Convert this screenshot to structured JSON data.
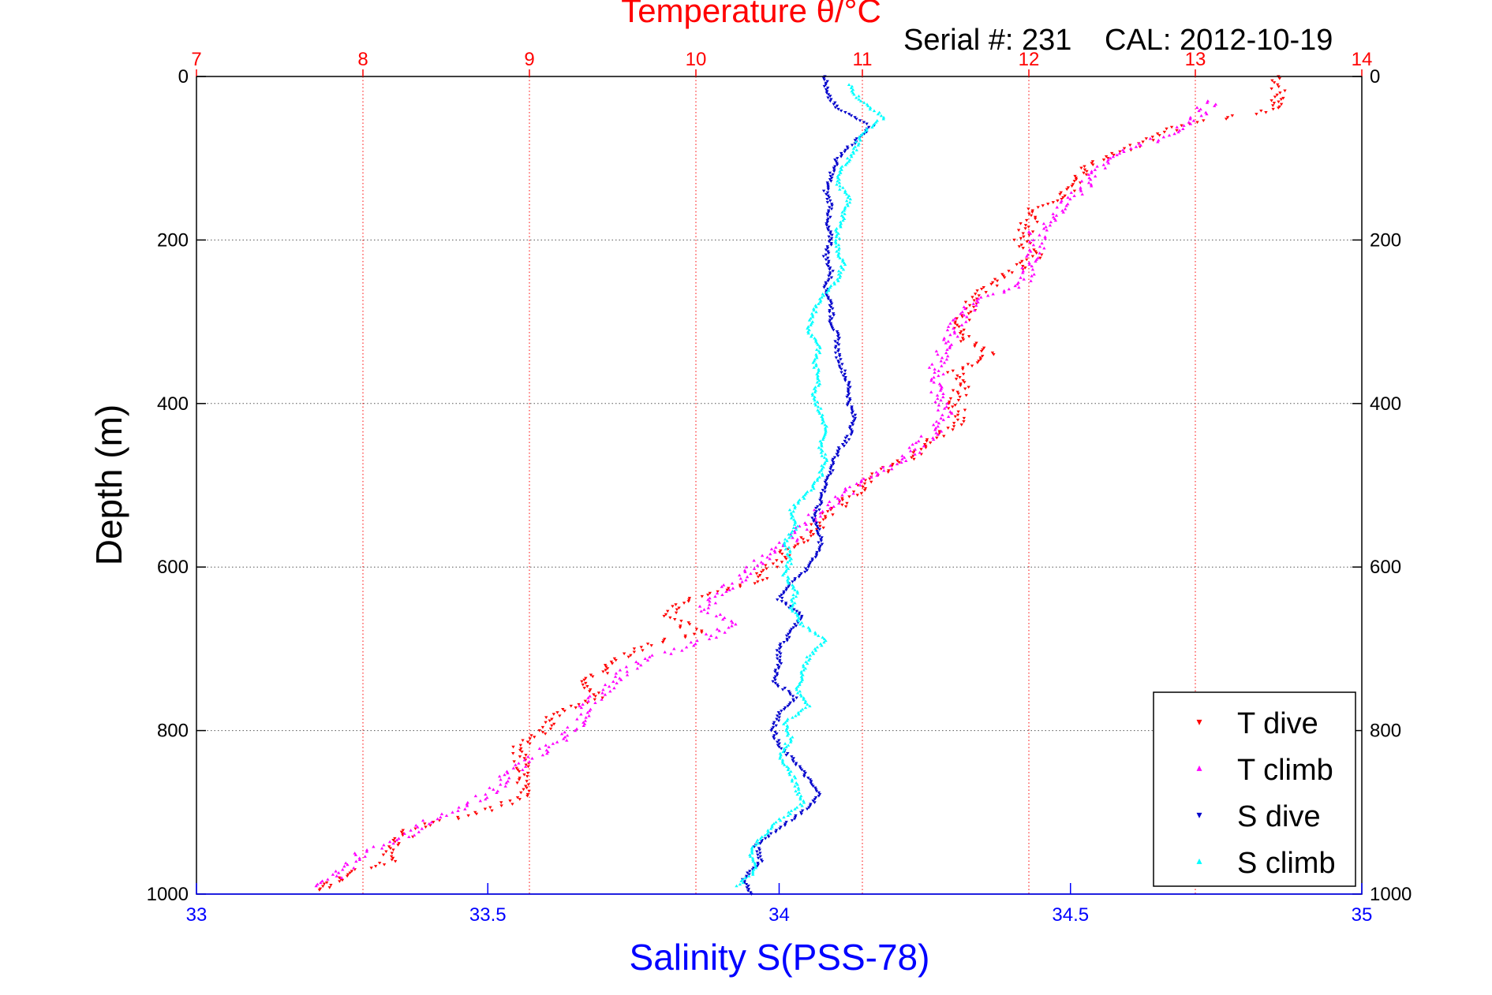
{
  "header": {
    "title": "Temperature θ/°C",
    "serial": "Serial #: 231",
    "cal": "CAL: 2012-10-19"
  },
  "colors": {
    "temperature_axis": "#ff0000",
    "salinity_axis": "#0000ff",
    "t_dive": "#ff0000",
    "t_climb": "#ff00ff",
    "s_dive": "#0000cc",
    "s_climb": "#00ffff"
  },
  "chart_data": {
    "type": "scatter",
    "title": "Temperature θ/°C",
    "ylabel": "Depth (m)",
    "xlabel": "Salinity S(PSS-78)",
    "ylim": [
      0,
      1000
    ],
    "y_reversed": true,
    "x_temperature_lim": [
      7,
      14
    ],
    "x_salinity_lim": [
      33,
      35
    ],
    "y_ticks": [
      "0",
      "200",
      "400",
      "600",
      "800",
      "1000"
    ],
    "temperature_ticks": [
      "7",
      "8",
      "9",
      "10",
      "11",
      "12",
      "13",
      "14"
    ],
    "salinity_ticks": [
      "33",
      "33.5",
      "34",
      "34.5",
      "35"
    ],
    "grid": true,
    "legend_position": "bottom-right",
    "legend": [
      "T dive",
      "T climb",
      "S dive",
      "S climb"
    ],
    "series": [
      {
        "name": "T dive",
        "axis": "temperature",
        "depth": [
          0,
          25,
          40,
          60,
          80,
          100,
          120,
          140,
          160,
          180,
          200,
          220,
          240,
          260,
          280,
          300,
          320,
          340,
          360,
          380,
          400,
          420,
          440,
          460,
          480,
          500,
          520,
          540,
          560,
          580,
          600,
          620,
          640,
          660,
          680,
          700,
          720,
          740,
          760,
          780,
          800,
          820,
          840,
          860,
          880,
          900,
          920,
          940,
          960,
          980,
          995
        ],
        "values": [
          13.5,
          13.5,
          13.5,
          12.9,
          12.7,
          12.45,
          12.3,
          12.25,
          12.05,
          12.0,
          11.95,
          12.05,
          11.9,
          11.75,
          11.65,
          11.6,
          11.6,
          11.75,
          11.55,
          11.6,
          11.55,
          11.6,
          11.45,
          11.35,
          11.15,
          11.0,
          10.9,
          10.75,
          10.7,
          10.55,
          10.45,
          10.35,
          9.95,
          9.85,
          10.0,
          9.65,
          9.5,
          9.35,
          9.4,
          9.15,
          9.1,
          8.95,
          8.95,
          8.95,
          9.0,
          8.7,
          8.3,
          8.2,
          8.15,
          7.85,
          7.75
        ]
      },
      {
        "name": "T climb",
        "axis": "temperature",
        "depth": [
          30,
          50,
          70,
          90,
          110,
          130,
          150,
          170,
          190,
          210,
          230,
          250,
          270,
          290,
          310,
          330,
          350,
          370,
          390,
          410,
          430,
          450,
          470,
          490,
          510,
          530,
          550,
          570,
          590,
          610,
          630,
          650,
          670,
          690,
          710,
          730,
          750,
          770,
          790,
          810,
          830,
          850,
          870,
          890,
          910,
          930,
          950,
          970,
          990
        ],
        "values": [
          13.1,
          13.0,
          12.85,
          12.6,
          12.45,
          12.35,
          12.25,
          12.15,
          12.05,
          12.05,
          12.0,
          12.0,
          11.75,
          11.6,
          11.55,
          11.5,
          11.45,
          11.45,
          11.45,
          11.5,
          11.45,
          11.35,
          11.25,
          11.05,
          10.9,
          10.75,
          10.65,
          10.55,
          10.4,
          10.3,
          10.15,
          10.05,
          10.2,
          10.05,
          9.75,
          9.55,
          9.45,
          9.35,
          9.3,
          9.2,
          9.05,
          8.9,
          8.8,
          8.65,
          8.4,
          8.25,
          8.0,
          7.9,
          7.75
        ]
      },
      {
        "name": "S dive",
        "axis": "salinity",
        "depth": [
          0,
          20,
          40,
          60,
          80,
          100,
          120,
          140,
          160,
          180,
          200,
          220,
          240,
          260,
          280,
          300,
          320,
          340,
          360,
          380,
          400,
          420,
          440,
          460,
          480,
          500,
          520,
          540,
          560,
          580,
          600,
          620,
          640,
          660,
          680,
          700,
          720,
          740,
          760,
          780,
          800,
          820,
          840,
          860,
          880,
          900,
          920,
          940,
          960,
          980,
          1000
        ],
        "values": [
          34.08,
          34.08,
          34.1,
          34.16,
          34.13,
          34.1,
          34.09,
          34.08,
          34.09,
          34.08,
          34.09,
          34.08,
          34.09,
          34.08,
          34.09,
          34.09,
          34.1,
          34.1,
          34.11,
          34.12,
          34.12,
          34.13,
          34.12,
          34.1,
          34.09,
          34.08,
          34.07,
          34.06,
          34.07,
          34.07,
          34.05,
          34.02,
          34.0,
          34.04,
          34.02,
          34.0,
          34.0,
          33.99,
          34.03,
          34.0,
          33.99,
          34.0,
          34.03,
          34.05,
          34.07,
          34.04,
          34.0,
          33.96,
          33.97,
          33.94,
          33.95
        ]
      },
      {
        "name": "S climb",
        "axis": "salinity",
        "depth": [
          10,
          30,
          50,
          70,
          90,
          110,
          130,
          150,
          170,
          190,
          210,
          230,
          250,
          270,
          290,
          310,
          330,
          350,
          370,
          390,
          410,
          430,
          450,
          470,
          490,
          510,
          530,
          550,
          570,
          590,
          610,
          630,
          650,
          670,
          690,
          710,
          730,
          750,
          770,
          790,
          810,
          830,
          850,
          870,
          890,
          910,
          930,
          950,
          970,
          990
        ],
        "values": [
          34.12,
          34.14,
          34.18,
          34.14,
          34.13,
          34.11,
          34.1,
          34.12,
          34.11,
          34.1,
          34.1,
          34.11,
          34.1,
          34.07,
          34.06,
          34.05,
          34.07,
          34.06,
          34.07,
          34.06,
          34.07,
          34.08,
          34.07,
          34.08,
          34.07,
          34.05,
          34.02,
          34.03,
          34.01,
          34.02,
          34.01,
          34.03,
          34.02,
          34.04,
          34.08,
          34.05,
          34.04,
          34.03,
          34.05,
          34.01,
          34.02,
          34.0,
          34.02,
          34.03,
          34.04,
          34.0,
          33.97,
          33.95,
          33.96,
          33.93
        ]
      }
    ]
  }
}
